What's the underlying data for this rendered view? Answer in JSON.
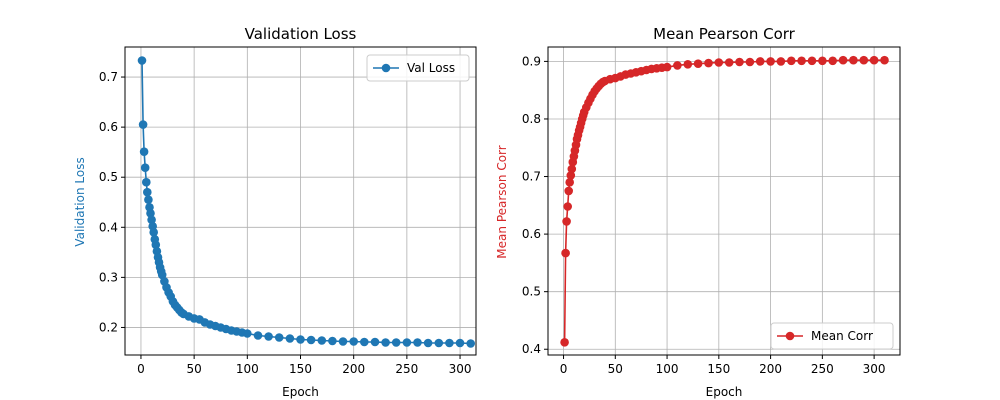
{
  "chart_data": [
    {
      "type": "line",
      "title": "Validation Loss",
      "xlabel": "Epoch",
      "ylabel": "Validation Loss",
      "xlim": [
        -15,
        315
      ],
      "ylim": [
        0.145,
        0.76
      ],
      "xticks": [
        0,
        50,
        100,
        150,
        200,
        250,
        300
      ],
      "yticks": [
        0.2,
        0.3,
        0.4,
        0.5,
        0.6,
        0.7
      ],
      "ytick_labels": [
        "0.2",
        "0.3",
        "0.4",
        "0.5",
        "0.6",
        "0.7"
      ],
      "grid": true,
      "legend_position": "top-right",
      "color": "#1f77b4",
      "series": [
        {
          "name": "Val Loss",
          "x": [
            1,
            2,
            3,
            4,
            5,
            6,
            7,
            8,
            9,
            10,
            11,
            12,
            13,
            14,
            15,
            16,
            17,
            18,
            19,
            20,
            22,
            24,
            26,
            28,
            30,
            32,
            34,
            36,
            38,
            40,
            45,
            50,
            55,
            60,
            65,
            70,
            75,
            80,
            85,
            90,
            95,
            100,
            110,
            120,
            130,
            140,
            150,
            160,
            170,
            180,
            190,
            200,
            210,
            220,
            230,
            240,
            250,
            260,
            270,
            280,
            290,
            300,
            310
          ],
          "values": [
            0.733,
            0.605,
            0.551,
            0.519,
            0.49,
            0.47,
            0.455,
            0.44,
            0.428,
            0.415,
            0.402,
            0.39,
            0.376,
            0.365,
            0.352,
            0.34,
            0.33,
            0.32,
            0.312,
            0.305,
            0.292,
            0.28,
            0.27,
            0.262,
            0.252,
            0.245,
            0.24,
            0.235,
            0.23,
            0.227,
            0.222,
            0.218,
            0.216,
            0.21,
            0.206,
            0.203,
            0.2,
            0.197,
            0.194,
            0.192,
            0.19,
            0.188,
            0.184,
            0.182,
            0.18,
            0.178,
            0.176,
            0.175,
            0.174,
            0.173,
            0.172,
            0.172,
            0.171,
            0.171,
            0.17,
            0.17,
            0.17,
            0.17,
            0.169,
            0.169,
            0.169,
            0.169,
            0.168
          ]
        }
      ]
    },
    {
      "type": "line",
      "title": "Mean Pearson Corr",
      "xlabel": "Epoch",
      "ylabel": "Mean Pearson Corr",
      "xlim": [
        -15,
        325
      ],
      "ylim": [
        0.39,
        0.925
      ],
      "xticks": [
        0,
        50,
        100,
        150,
        200,
        250,
        300
      ],
      "yticks": [
        0.4,
        0.5,
        0.6,
        0.7,
        0.8,
        0.9
      ],
      "ytick_labels": [
        "0.4",
        "0.5",
        "0.6",
        "0.7",
        "0.8",
        "0.9"
      ],
      "grid": true,
      "legend_position": "bottom-right",
      "color": "#d62728",
      "series": [
        {
          "name": "Mean Corr",
          "x": [
            1,
            2,
            3,
            4,
            5,
            6,
            7,
            8,
            9,
            10,
            11,
            12,
            13,
            14,
            15,
            16,
            17,
            18,
            19,
            20,
            22,
            24,
            26,
            28,
            30,
            32,
            34,
            36,
            38,
            40,
            45,
            50,
            55,
            60,
            65,
            70,
            75,
            80,
            85,
            90,
            95,
            100,
            110,
            120,
            130,
            140,
            150,
            160,
            170,
            180,
            190,
            200,
            210,
            220,
            230,
            240,
            250,
            260,
            270,
            280,
            290,
            300,
            310
          ],
          "values": [
            0.412,
            0.567,
            0.622,
            0.648,
            0.675,
            0.69,
            0.702,
            0.713,
            0.725,
            0.735,
            0.745,
            0.755,
            0.765,
            0.772,
            0.78,
            0.786,
            0.793,
            0.8,
            0.806,
            0.812,
            0.82,
            0.828,
            0.835,
            0.842,
            0.848,
            0.853,
            0.857,
            0.861,
            0.864,
            0.866,
            0.869,
            0.871,
            0.874,
            0.877,
            0.879,
            0.881,
            0.883,
            0.885,
            0.887,
            0.888,
            0.889,
            0.89,
            0.893,
            0.895,
            0.896,
            0.897,
            0.898,
            0.898,
            0.899,
            0.899,
            0.9,
            0.9,
            0.9,
            0.901,
            0.901,
            0.901,
            0.901,
            0.901,
            0.902,
            0.902,
            0.902,
            0.902,
            0.902
          ]
        }
      ]
    }
  ]
}
